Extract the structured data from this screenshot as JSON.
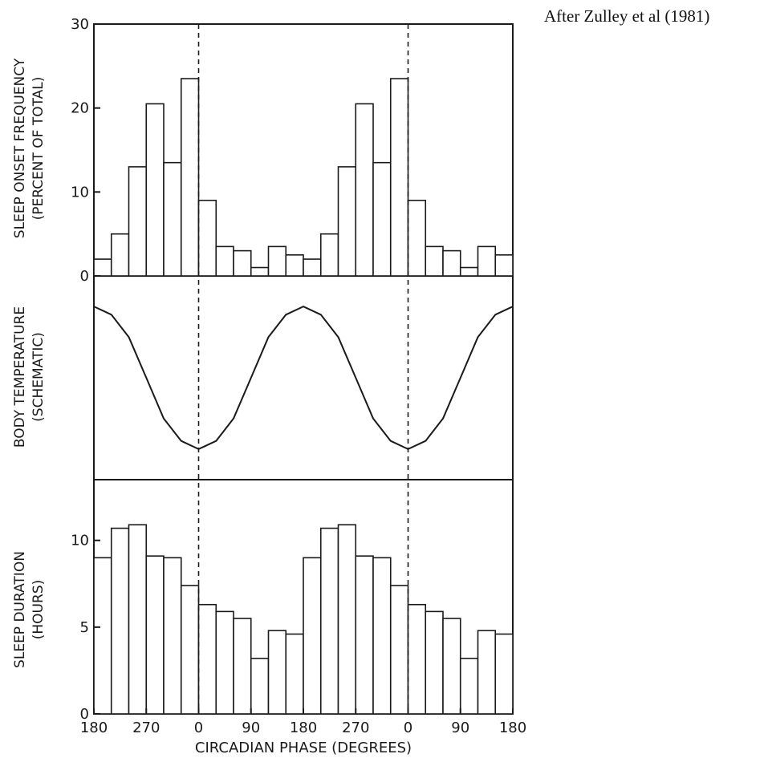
{
  "attribution": "After Zulley et al (1981)",
  "colors": {
    "ink": "#1a1a1a",
    "background": "#ffffff"
  },
  "chart_data": [
    {
      "type": "bar",
      "panel": "top",
      "ylabel_line1": "SLEEP ONSET FREQUENCY",
      "ylabel_line2": "(PERCENT OF TOTAL)",
      "ylim": [
        0,
        30
      ],
      "yticks": [
        0,
        10,
        20,
        30
      ],
      "ytick_labels": [
        "0",
        "10",
        "20",
        "30"
      ],
      "bin_width_degrees": 30,
      "x_start_degrees": 180,
      "x_span_degrees": 720,
      "values": [
        2.0,
        5.0,
        13.0,
        20.5,
        13.5,
        23.5,
        9.0,
        3.5,
        3.0,
        1.0,
        3.5,
        2.5,
        2.0,
        5.0,
        13.0,
        20.5,
        13.5,
        23.5,
        9.0,
        3.5,
        3.0,
        1.0,
        3.5,
        2.5
      ]
    },
    {
      "type": "line",
      "panel": "middle",
      "ylabel_line1": "BODY TEMPERATURE",
      "ylabel_line2": "(SCHEMATIC)",
      "x": [
        180,
        210,
        240,
        270,
        300,
        330,
        360,
        390,
        420,
        450,
        480,
        510,
        540,
        570,
        600,
        630,
        660,
        690,
        720,
        750,
        780,
        810,
        840,
        870,
        900
      ],
      "values": [
        0.85,
        0.81,
        0.7,
        0.5,
        0.3,
        0.19,
        0.15,
        0.19,
        0.3,
        0.5,
        0.7,
        0.81,
        0.85,
        0.81,
        0.7,
        0.5,
        0.3,
        0.19,
        0.15,
        0.19,
        0.3,
        0.5,
        0.7,
        0.81,
        0.85
      ],
      "minima_at_degrees": [
        360,
        720
      ]
    },
    {
      "type": "bar",
      "panel": "bottom",
      "ylabel_line1": "SLEEP DURATION",
      "ylabel_line2": "(HOURS)",
      "ylim": [
        0,
        13.5
      ],
      "yticks": [
        0,
        5,
        10
      ],
      "ytick_labels": [
        "0",
        "5",
        "10"
      ],
      "bin_width_degrees": 30,
      "x_start_degrees": 180,
      "x_span_degrees": 720,
      "values": [
        9.0,
        10.7,
        10.9,
        9.1,
        9.0,
        7.4,
        6.3,
        5.9,
        5.5,
        3.2,
        4.8,
        4.6,
        9.0,
        10.7,
        10.9,
        9.1,
        9.0,
        7.4,
        6.3,
        5.9,
        5.5,
        3.2,
        4.8,
        4.6
      ],
      "xlabel": "CIRCADIAN PHASE (DEGREES)",
      "xtick_labels": [
        "180",
        "270",
        "0",
        "90",
        "180",
        "270",
        "0",
        "90",
        "180"
      ],
      "xtick_degrees": [
        180,
        270,
        360,
        450,
        540,
        630,
        720,
        810,
        900
      ]
    }
  ]
}
